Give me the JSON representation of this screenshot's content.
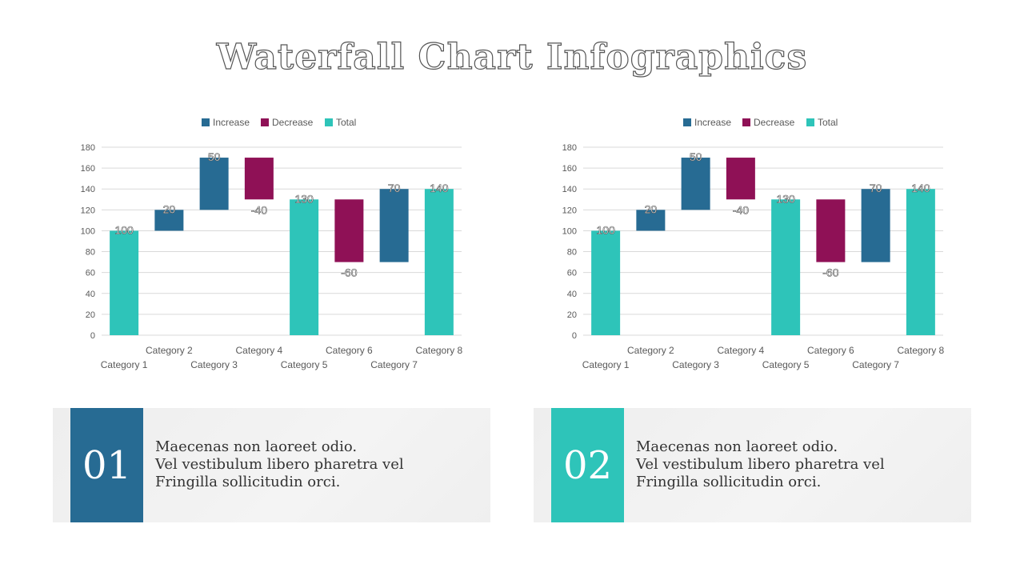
{
  "title": "Waterfall Chart Infographics",
  "colors": {
    "increase": "#276b93",
    "decrease": "#8f1156",
    "total": "#2ec4b9"
  },
  "chart_data": [
    {
      "type": "bar",
      "variant": "waterfall",
      "title": "",
      "legend": {
        "position": "top",
        "entries": [
          {
            "key": "increase",
            "label": "Increase"
          },
          {
            "key": "decrease",
            "label": "Decrease"
          },
          {
            "key": "total",
            "label": "Total"
          }
        ]
      },
      "categories": [
        "Category 1",
        "Category 2",
        "Category 3",
        "Category 4",
        "Category 5",
        "Category 6",
        "Category 7",
        "Category 8"
      ],
      "bars": [
        {
          "kind": "total",
          "start": 0,
          "end": 100,
          "label": "100"
        },
        {
          "kind": "increase",
          "start": 100,
          "end": 120,
          "label": "20"
        },
        {
          "kind": "increase",
          "start": 120,
          "end": 170,
          "label": "50"
        },
        {
          "kind": "decrease",
          "start": 170,
          "end": 130,
          "label": "-40"
        },
        {
          "kind": "total",
          "start": 0,
          "end": 130,
          "label": "130"
        },
        {
          "kind": "decrease",
          "start": 130,
          "end": 70,
          "label": "-60"
        },
        {
          "kind": "increase",
          "start": 70,
          "end": 140,
          "label": "70"
        },
        {
          "kind": "total",
          "start": 0,
          "end": 140,
          "label": "140"
        }
      ],
      "ylim": [
        0,
        180
      ],
      "yticks": [
        "0",
        "20",
        "40",
        "60",
        "80",
        "100",
        "120",
        "140",
        "160",
        "180"
      ],
      "grid": true,
      "xlabel": "",
      "ylabel": ""
    },
    {
      "type": "bar",
      "variant": "waterfall",
      "title": "",
      "legend": {
        "position": "top",
        "entries": [
          {
            "key": "increase",
            "label": "Increase"
          },
          {
            "key": "decrease",
            "label": "Decrease"
          },
          {
            "key": "total",
            "label": "Total"
          }
        ]
      },
      "categories": [
        "Category 1",
        "Category 2",
        "Category 3",
        "Category 4",
        "Category 5",
        "Category 6",
        "Category 7",
        "Category 8"
      ],
      "bars": [
        {
          "kind": "total",
          "start": 0,
          "end": 100,
          "label": "100"
        },
        {
          "kind": "increase",
          "start": 100,
          "end": 120,
          "label": "20"
        },
        {
          "kind": "increase",
          "start": 120,
          "end": 170,
          "label": "50"
        },
        {
          "kind": "decrease",
          "start": 170,
          "end": 130,
          "label": "-40"
        },
        {
          "kind": "total",
          "start": 0,
          "end": 130,
          "label": "130"
        },
        {
          "kind": "decrease",
          "start": 130,
          "end": 70,
          "label": "-60"
        },
        {
          "kind": "increase",
          "start": 70,
          "end": 140,
          "label": "70"
        },
        {
          "kind": "total",
          "start": 0,
          "end": 140,
          "label": "140"
        }
      ],
      "ylim": [
        0,
        180
      ],
      "yticks": [
        "0",
        "20",
        "40",
        "60",
        "80",
        "100",
        "120",
        "140",
        "160",
        "180"
      ],
      "grid": true,
      "xlabel": "",
      "ylabel": ""
    }
  ],
  "panels": [
    {
      "number": "01",
      "color": "#276b93",
      "lines": [
        "Maecenas non laoreet odio.",
        "Vel vestibulum libero pharetra vel",
        "Fringilla sollicitudin orci."
      ]
    },
    {
      "number": "02",
      "color": "#2ec4b9",
      "lines": [
        "Maecenas non laoreet odio.",
        "Vel vestibulum libero pharetra vel",
        "Fringilla sollicitudin orci."
      ]
    }
  ]
}
